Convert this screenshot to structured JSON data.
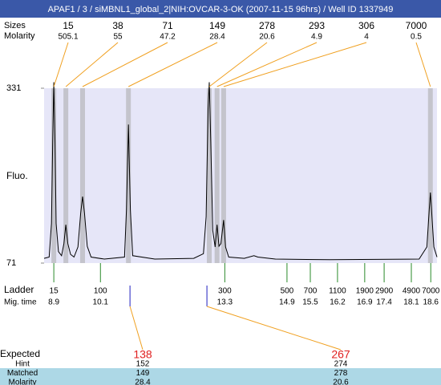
{
  "window_title": "APAF1 / 3 / siMBNL1_global_2|NIH:OVCAR-3-OK (2007-11-15 96hrs) / Well ID 1337949",
  "chart_data": {
    "type": "line",
    "y_label": "Fluo.",
    "color": "#000000",
    "background": "#e6e6f8",
    "xlim": [
      8.65,
      18.76
    ],
    "ylim": [
      71,
      331
    ],
    "yticks": [
      71,
      331
    ],
    "x": [
      8.65,
      8.78,
      8.84,
      8.87,
      8.9,
      8.93,
      8.96,
      9.02,
      9.1,
      9.16,
      9.21,
      9.26,
      9.33,
      9.42,
      9.52,
      9.59,
      9.64,
      9.69,
      9.76,
      9.86,
      10.2,
      10.72,
      10.77,
      10.82,
      10.87,
      10.93,
      11.5,
      12.5,
      12.75,
      12.82,
      12.87,
      12.9,
      12.94,
      12.99,
      13.05,
      13.1,
      13.15,
      13.2,
      13.27,
      13.32,
      13.4,
      13.8,
      14.05,
      14.15,
      14.6,
      16,
      18.3,
      18.5,
      18.56,
      18.59,
      18.62,
      18.68,
      18.76
    ],
    "values": [
      78,
      80,
      130,
      250,
      340,
      250,
      130,
      88,
      82,
      100,
      128,
      100,
      84,
      80,
      95,
      145,
      170,
      145,
      96,
      80,
      77,
      80,
      150,
      277,
      150,
      82,
      77,
      78,
      85,
      140,
      300,
      340,
      250,
      120,
      95,
      128,
      96,
      100,
      135,
      95,
      80,
      78,
      82,
      80,
      77,
      76,
      77,
      95,
      150,
      176,
      150,
      95,
      80
    ]
  },
  "peaks": {
    "row_labels": [
      "Sizes",
      "Molarity"
    ],
    "times": [
      8.9,
      9.21,
      9.64,
      10.82,
      12.9,
      13.1,
      13.27,
      18.59
    ],
    "sizes": [
      15,
      38,
      71,
      149,
      278,
      293,
      306,
      7000
    ],
    "molarity": [
      505.1,
      55,
      47.2,
      28.4,
      20.6,
      4.9,
      4,
      0.5
    ]
  },
  "ladder": {
    "label": "Ladder",
    "time_label": "Mig. time",
    "sizes": [
      15,
      100,
      300,
      500,
      700,
      1100,
      1900,
      2900,
      4900,
      7000
    ],
    "times": [
      8.9,
      10.1,
      13.3,
      14.9,
      15.5,
      16.2,
      16.9,
      17.4,
      18.1,
      18.6
    ]
  },
  "expected": {
    "label": "Expected",
    "row_labels": [
      "Hint",
      "Matched",
      "Molarity"
    ],
    "sizes": [
      138,
      267
    ],
    "times": [
      10.86,
      12.84
    ],
    "hint": [
      152,
      274
    ],
    "matched": [
      149,
      278
    ],
    "molarity": [
      28.4,
      20.6
    ]
  }
}
